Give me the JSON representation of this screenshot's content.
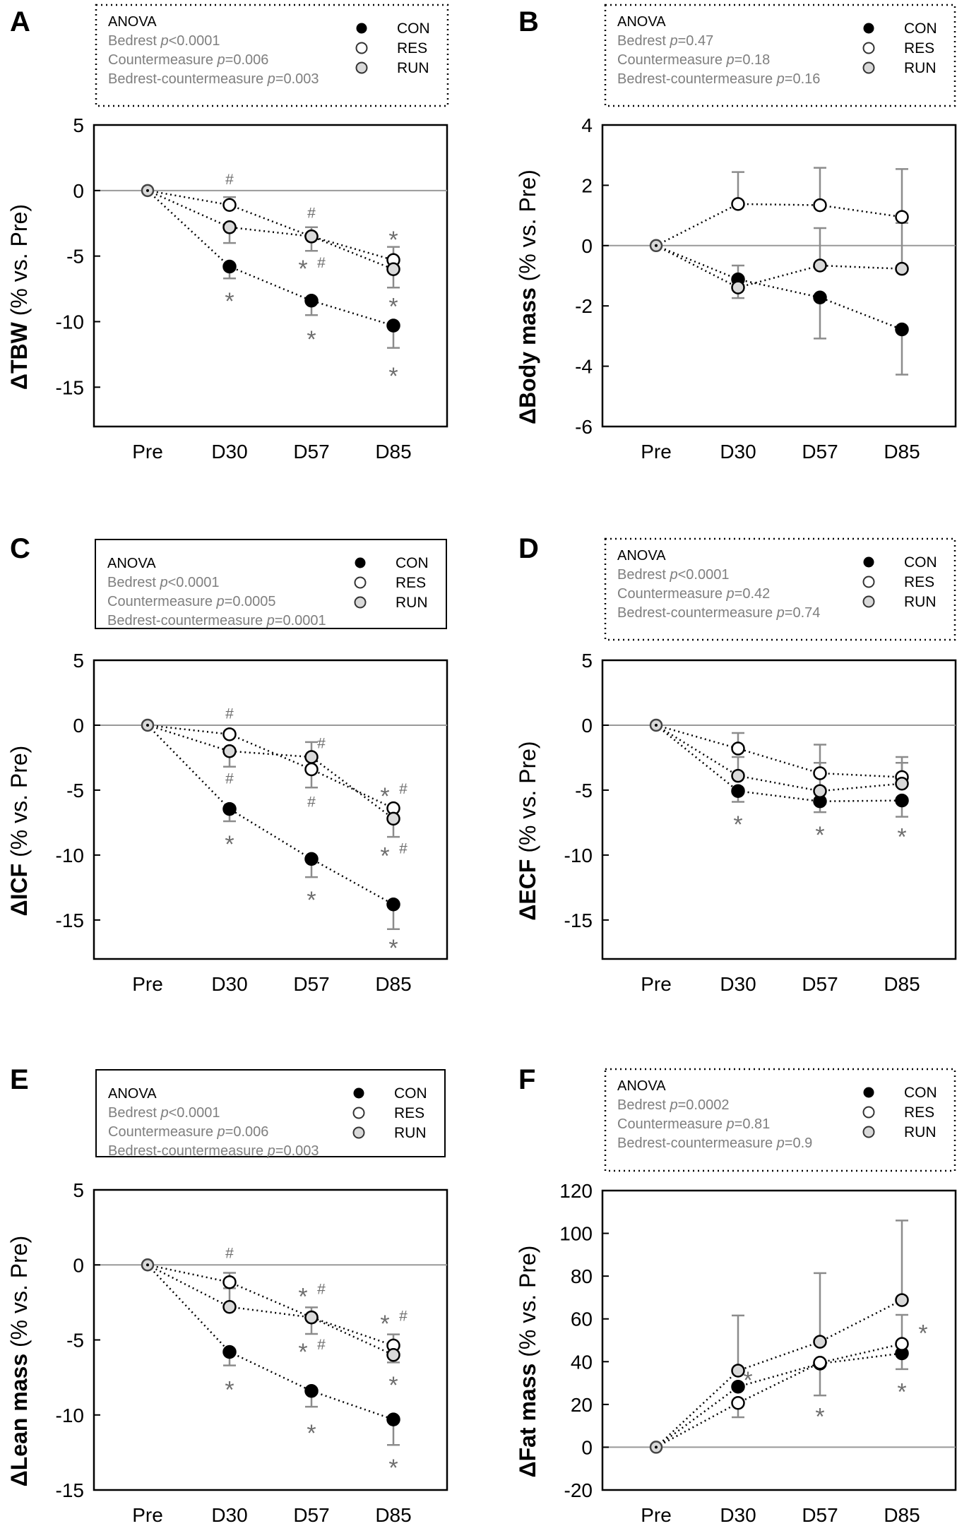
{
  "categories": [
    "Pre",
    "D30",
    "D57",
    "D85"
  ],
  "legend_groups": [
    {
      "name": "CON",
      "fill": "#000000"
    },
    {
      "name": "RES",
      "fill": "#ffffff"
    },
    {
      "name": "RUN",
      "fill": "#d9d9d9"
    }
  ],
  "anova_title": "ANOVA",
  "p_label": "p",
  "colors": {
    "errorbar": "#8c8c8c",
    "zero_line": "#999999",
    "annotation": "#6e6e6e",
    "stat_text": "#7f7f7f"
  },
  "chart_data": [
    {
      "panel": "A",
      "type": "line",
      "ylabel_main": "ΔTBW",
      "ylabel_sub": " (% vs. Pre)",
      "ylim": [
        -18,
        5
      ],
      "yticks": [
        5,
        0,
        -5,
        -10,
        -15
      ],
      "anova": [
        {
          "term": "Bedrest",
          "p": "<0.0001"
        },
        {
          "term": "Countermeasure",
          "p": "=0.006"
        },
        {
          "term": "Bedrest-countermeasure",
          "p": "=0.003"
        }
      ],
      "series": [
        {
          "name": "CON",
          "values": [
            0,
            -5.8,
            -8.4,
            -10.3
          ],
          "err_end": [
            null,
            -6.7,
            -9.5,
            -12.0
          ]
        },
        {
          "name": "RES",
          "values": [
            0,
            -1.1,
            -3.5,
            -5.3
          ],
          "err_end": [
            null,
            -0.5,
            null,
            -4.3
          ]
        },
        {
          "name": "RUN",
          "values": [
            0,
            -2.8,
            -3.5,
            -6.0
          ],
          "err_end": [
            null,
            -4.0,
            -4.6,
            -7.4
          ],
          "err_end2": [
            null,
            null,
            -2.8,
            null
          ]
        }
      ],
      "annotations": [
        {
          "text": "#",
          "cat": 1,
          "y": 0.85,
          "side": "center"
        },
        {
          "text": "#",
          "cat": 2,
          "y": -1.7,
          "side": "center"
        },
        {
          "text": "*",
          "cat": 2,
          "y": -5.6,
          "side": "left"
        },
        {
          "text": "#",
          "cat": 2,
          "y": -5.5,
          "side": "right"
        },
        {
          "text": "*",
          "cat": 3,
          "y": -3.4,
          "side": "center"
        },
        {
          "text": "*",
          "cat": 3,
          "y": -8.5,
          "side": "center"
        },
        {
          "text": "*",
          "cat": 1,
          "y": -8.1,
          "side": "center"
        },
        {
          "text": "*",
          "cat": 2,
          "y": -11.0,
          "side": "center"
        },
        {
          "text": "*",
          "cat": 3,
          "y": -13.8,
          "side": "center"
        }
      ]
    },
    {
      "panel": "B",
      "type": "line",
      "ylabel_main": "ΔBody mass",
      "ylabel_sub": " (% vs. Pre)",
      "ylim": [
        -6,
        4
      ],
      "yticks": [
        4,
        2,
        0,
        -2,
        -4,
        -6
      ],
      "anova": [
        {
          "term": "Bedrest",
          "p": "=0.47"
        },
        {
          "term": "Countermeasure",
          "p": "=0.18"
        },
        {
          "term": "Bedrest-countermeasure",
          "p": "=0.16"
        }
      ],
      "series": [
        {
          "name": "CON",
          "values": [
            0,
            -1.12,
            -1.72,
            -2.78
          ],
          "err_end": [
            null,
            -0.66,
            -3.08,
            -4.28
          ]
        },
        {
          "name": "RES",
          "values": [
            0,
            1.38,
            1.34,
            0.95
          ],
          "err_end": [
            null,
            2.44,
            2.58,
            2.54
          ]
        },
        {
          "name": "RUN",
          "values": [
            0,
            -1.39,
            -0.66,
            -0.77
          ],
          "err_end": [
            null,
            -1.74,
            0.58,
            0.75
          ]
        }
      ],
      "annotations": []
    },
    {
      "panel": "C",
      "type": "line",
      "ylabel_main": "ΔICF",
      "ylabel_sub": " (% vs. Pre)",
      "ylim": [
        -18,
        5
      ],
      "yticks": [
        5,
        0,
        -5,
        -10,
        -15
      ],
      "anova": [
        {
          "term": "Bedrest",
          "p": "<0.0001"
        },
        {
          "term": "Countermeasure",
          "p": "=0.0005"
        },
        {
          "term": "Bedrest-countermeasure",
          "p": "=0.0001"
        }
      ],
      "series": [
        {
          "name": "CON",
          "values": [
            0,
            -6.45,
            -10.3,
            -13.8
          ],
          "err_end": [
            null,
            -7.4,
            -11.7,
            -15.7
          ]
        },
        {
          "name": "RES",
          "values": [
            0,
            -0.7,
            -3.4,
            -6.4
          ],
          "err_end": [
            null,
            null,
            -4.8,
            null
          ]
        },
        {
          "name": "RUN",
          "values": [
            0,
            -2.0,
            -2.45,
            -7.2
          ],
          "err_end": [
            null,
            -3.2,
            -1.3,
            -8.6
          ]
        }
      ],
      "annotations": [
        {
          "text": "#",
          "cat": 1,
          "y": 0.9,
          "side": "center"
        },
        {
          "text": "#",
          "cat": 1,
          "y": -4.1,
          "side": "center"
        },
        {
          "text": "#",
          "cat": 2,
          "y": -1.4,
          "side": "right"
        },
        {
          "text": "#",
          "cat": 2,
          "y": -5.9,
          "side": "center"
        },
        {
          "text": "*",
          "cat": 3,
          "y": -5.1,
          "side": "left"
        },
        {
          "text": "#",
          "cat": 3,
          "y": -4.9,
          "side": "right"
        },
        {
          "text": "*",
          "cat": 3,
          "y": -9.7,
          "side": "left"
        },
        {
          "text": "#",
          "cat": 3,
          "y": -9.5,
          "side": "right"
        },
        {
          "text": "*",
          "cat": 1,
          "y": -8.8,
          "side": "center"
        },
        {
          "text": "*",
          "cat": 2,
          "y": -13.1,
          "side": "center"
        },
        {
          "text": "*",
          "cat": 3,
          "y": -16.8,
          "side": "center"
        }
      ]
    },
    {
      "panel": "D",
      "type": "line",
      "ylabel_main": "ΔECF",
      "ylabel_sub": "  (% vs. Pre)",
      "ylim": [
        -18,
        5
      ],
      "yticks": [
        5,
        0,
        -5,
        -10,
        -15
      ],
      "anova": [
        {
          "term": "Bedrest",
          "p": "<0.0001"
        },
        {
          "term": "Countermeasure",
          "p": "=0.42"
        },
        {
          "term": "Bedrest-countermeasure",
          "p": "=0.74"
        }
      ],
      "series": [
        {
          "name": "CON",
          "values": [
            0,
            -5.07,
            -5.86,
            -5.8
          ],
          "err_end": [
            null,
            -5.9,
            -6.7,
            -7.05
          ]
        },
        {
          "name": "RES",
          "values": [
            0,
            -1.8,
            -3.7,
            -4.0
          ],
          "err_end": [
            null,
            -0.6,
            -1.5,
            -2.45
          ]
        },
        {
          "name": "RUN",
          "values": [
            0,
            -3.9,
            -5.07,
            -4.5
          ],
          "err_end": [
            null,
            -2.45,
            -2.9,
            -2.9
          ]
        }
      ],
      "annotations": [
        {
          "text": "*",
          "cat": 1,
          "y": -7.3,
          "side": "center"
        },
        {
          "text": "*",
          "cat": 2,
          "y": -8.1,
          "side": "center"
        },
        {
          "text": "*",
          "cat": 3,
          "y": -8.25,
          "side": "center"
        }
      ]
    },
    {
      "panel": "E",
      "type": "line",
      "ylabel_main": "ΔLean mass",
      "ylabel_sub": " (% vs. Pre)",
      "ylim": [
        -15,
        5
      ],
      "yticks": [
        5,
        0,
        -5,
        -10,
        -15
      ],
      "anova": [
        {
          "term": "Bedrest",
          "p": "<0.0001"
        },
        {
          "term": "Countermeasure",
          "p": "=0.006"
        },
        {
          "term": "Bedrest-countermeasure",
          "p": "=0.003"
        }
      ],
      "series": [
        {
          "name": "CON",
          "values": [
            0,
            -5.8,
            -8.4,
            -10.3
          ],
          "err_end": [
            null,
            -6.7,
            -9.45,
            -12.0
          ]
        },
        {
          "name": "RES",
          "values": [
            0,
            -1.15,
            -3.5,
            -5.37
          ],
          "err_end": [
            null,
            -0.53,
            null,
            -4.63
          ]
        },
        {
          "name": "RUN",
          "values": [
            0,
            -2.8,
            -3.5,
            -6.0
          ],
          "err_end": [
            null,
            -1.56,
            -4.6,
            -6.5
          ],
          "err_end2": [
            null,
            null,
            -2.83,
            null
          ]
        }
      ],
      "annotations": [
        {
          "text": "#",
          "cat": 1,
          "y": 0.8,
          "side": "center"
        },
        {
          "text": "*",
          "cat": 2,
          "y": -1.8,
          "side": "left"
        },
        {
          "text": "#",
          "cat": 2,
          "y": -1.6,
          "side": "right"
        },
        {
          "text": "*",
          "cat": 2,
          "y": -5.5,
          "side": "left"
        },
        {
          "text": "#",
          "cat": 2,
          "y": -5.3,
          "side": "right"
        },
        {
          "text": "*",
          "cat": 3,
          "y": -3.6,
          "side": "left"
        },
        {
          "text": "#",
          "cat": 3,
          "y": -3.4,
          "side": "right"
        },
        {
          "text": "*",
          "cat": 3,
          "y": -7.7,
          "side": "center"
        },
        {
          "text": "*",
          "cat": 1,
          "y": -8.0,
          "side": "center"
        },
        {
          "text": "*",
          "cat": 2,
          "y": -10.9,
          "side": "center"
        },
        {
          "text": "*",
          "cat": 3,
          "y": -13.2,
          "side": "center"
        }
      ]
    },
    {
      "panel": "F",
      "type": "line",
      "ylabel_main": "ΔFat mass",
      "ylabel_sub": " (% vs. Pre)",
      "ylim": [
        -20,
        120
      ],
      "yticks": [
        120,
        100,
        80,
        60,
        40,
        20,
        0,
        -20
      ],
      "anova": [
        {
          "term": "Bedrest",
          "p": "=0.0002"
        },
        {
          "term": "Countermeasure",
          "p": "=0.81"
        },
        {
          "term": "Bedrest-countermeasure",
          "p": "=0.9"
        }
      ],
      "series": [
        {
          "name": "CON",
          "values": [
            0,
            28.3,
            39.1,
            43.9
          ],
          "err_end": [
            null,
            null,
            24.2,
            36.5
          ]
        },
        {
          "name": "RES",
          "values": [
            0,
            20.7,
            39.5,
            48.3
          ],
          "err_end": [
            null,
            14.0,
            null,
            61.9
          ]
        },
        {
          "name": "RUN",
          "values": [
            0,
            35.8,
            49.3,
            68.8
          ],
          "err_end": [
            null,
            61.6,
            81.4,
            106.0
          ]
        }
      ],
      "annotations": [
        {
          "text": "*",
          "cat": 1,
          "y": 33.5,
          "side": "right"
        },
        {
          "text": "*",
          "cat": 2,
          "y": 16.5,
          "side": "center"
        },
        {
          "text": "*",
          "cat": 3,
          "y": 55.5,
          "side": "farright"
        },
        {
          "text": "*",
          "cat": 3,
          "y": 28.0,
          "side": "center"
        }
      ]
    }
  ]
}
